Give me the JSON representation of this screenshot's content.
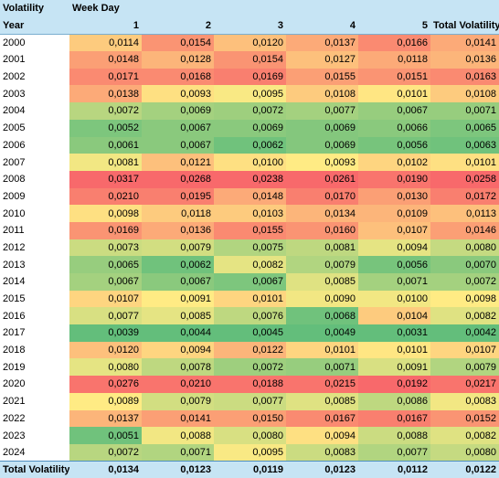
{
  "header": {
    "corner_label": "Volatility",
    "columns_label": "Week Day",
    "year_label": "Year",
    "day_columns": [
      "1",
      "2",
      "3",
      "4",
      "5"
    ],
    "total_column": "Total Volatility"
  },
  "colors": {
    "header_bg": "#c6e4f4",
    "low": "#63be7b",
    "mid": "#ffeb84",
    "high": "#f8696b"
  },
  "rows": [
    {
      "year": "2000",
      "values": [
        "0,0114",
        "0,0154",
        "0,0120",
        "0,0137",
        "0,0166"
      ],
      "total": "0,0141"
    },
    {
      "year": "2001",
      "values": [
        "0,0148",
        "0,0128",
        "0,0154",
        "0,0127",
        "0,0118"
      ],
      "total": "0,0136"
    },
    {
      "year": "2002",
      "values": [
        "0,0171",
        "0,0168",
        "0,0169",
        "0,0155",
        "0,0151"
      ],
      "total": "0,0163"
    },
    {
      "year": "2003",
      "values": [
        "0,0138",
        "0,0093",
        "0,0095",
        "0,0108",
        "0,0101"
      ],
      "total": "0,0108"
    },
    {
      "year": "2004",
      "values": [
        "0,0072",
        "0,0069",
        "0,0072",
        "0,0077",
        "0,0067"
      ],
      "total": "0,0071"
    },
    {
      "year": "2005",
      "values": [
        "0,0052",
        "0,0067",
        "0,0069",
        "0,0069",
        "0,0066"
      ],
      "total": "0,0065"
    },
    {
      "year": "2006",
      "values": [
        "0,0061",
        "0,0067",
        "0,0062",
        "0,0069",
        "0,0056"
      ],
      "total": "0,0063"
    },
    {
      "year": "2007",
      "values": [
        "0,0081",
        "0,0121",
        "0,0100",
        "0,0093",
        "0,0102"
      ],
      "total": "0,0101"
    },
    {
      "year": "2008",
      "values": [
        "0,0317",
        "0,0268",
        "0,0238",
        "0,0261",
        "0,0190"
      ],
      "total": "0,0258"
    },
    {
      "year": "2009",
      "values": [
        "0,0210",
        "0,0195",
        "0,0148",
        "0,0170",
        "0,0130"
      ],
      "total": "0,0172"
    },
    {
      "year": "2010",
      "values": [
        "0,0098",
        "0,0118",
        "0,0103",
        "0,0134",
        "0,0109"
      ],
      "total": "0,0113"
    },
    {
      "year": "2011",
      "values": [
        "0,0169",
        "0,0136",
        "0,0155",
        "0,0160",
        "0,0107"
      ],
      "total": "0,0146"
    },
    {
      "year": "2012",
      "values": [
        "0,0073",
        "0,0079",
        "0,0075",
        "0,0081",
        "0,0094"
      ],
      "total": "0,0080"
    },
    {
      "year": "2013",
      "values": [
        "0,0065",
        "0,0062",
        "0,0082",
        "0,0079",
        "0,0056"
      ],
      "total": "0,0070"
    },
    {
      "year": "2014",
      "values": [
        "0,0067",
        "0,0067",
        "0,0067",
        "0,0085",
        "0,0071"
      ],
      "total": "0,0072"
    },
    {
      "year": "2015",
      "values": [
        "0,0107",
        "0,0091",
        "0,0101",
        "0,0090",
        "0,0100"
      ],
      "total": "0,0098"
    },
    {
      "year": "2016",
      "values": [
        "0,0077",
        "0,0085",
        "0,0076",
        "0,0068",
        "0,0104"
      ],
      "total": "0,0082"
    },
    {
      "year": "2017",
      "values": [
        "0,0039",
        "0,0044",
        "0,0045",
        "0,0049",
        "0,0031"
      ],
      "total": "0,0042"
    },
    {
      "year": "2018",
      "values": [
        "0,0120",
        "0,0094",
        "0,0122",
        "0,0101",
        "0,0101"
      ],
      "total": "0,0107"
    },
    {
      "year": "2019",
      "values": [
        "0,0080",
        "0,0078",
        "0,0072",
        "0,0071",
        "0,0091"
      ],
      "total": "0,0079"
    },
    {
      "year": "2020",
      "values": [
        "0,0276",
        "0,0210",
        "0,0188",
        "0,0215",
        "0,0192"
      ],
      "total": "0,0217"
    },
    {
      "year": "2021",
      "values": [
        "0,0089",
        "0,0079",
        "0,0077",
        "0,0085",
        "0,0086"
      ],
      "total": "0,0083"
    },
    {
      "year": "2022",
      "values": [
        "0,0137",
        "0,0141",
        "0,0150",
        "0,0167",
        "0,0167"
      ],
      "total": "0,0152"
    },
    {
      "year": "2023",
      "values": [
        "0,0051",
        "0,0088",
        "0,0080",
        "0,0094",
        "0,0088"
      ],
      "total": "0,0082"
    },
    {
      "year": "2024",
      "values": [
        "0,0072",
        "0,0071",
        "0,0095",
        "0,0083",
        "0,0077"
      ],
      "total": "0,0080"
    }
  ],
  "total_row": {
    "label": "Total Volatility",
    "values": [
      "0,0134",
      "0,0123",
      "0,0119",
      "0,0123",
      "0,0112"
    ],
    "total": "0,0122"
  }
}
